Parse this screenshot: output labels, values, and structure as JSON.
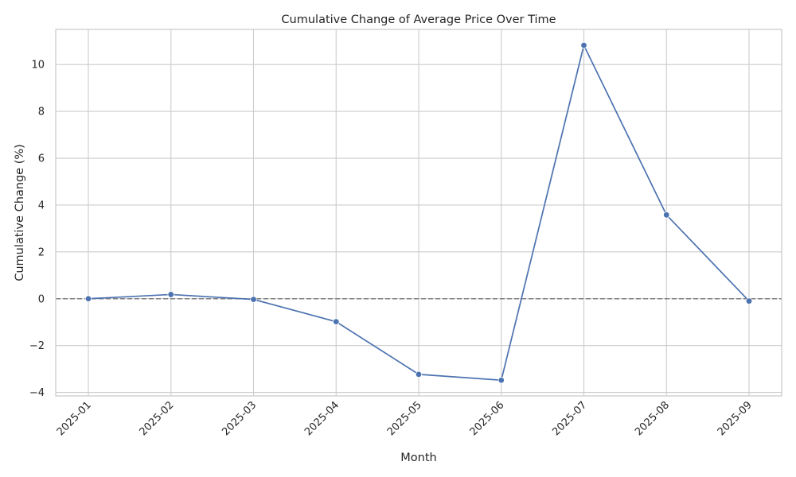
{
  "chart_data": {
    "type": "line",
    "title": "Cumulative Change of Average Price Over Time",
    "xlabel": "Month",
    "ylabel": "Cumulative Change (%)",
    "categories": [
      "2025-01",
      "2025-02",
      "2025-03",
      "2025-04",
      "2025-05",
      "2025-06",
      "2025-07",
      "2025-08",
      "2025-09"
    ],
    "x": [
      "2025-01-01",
      "2025-02-01",
      "2025-03-01",
      "2025-04-01",
      "2025-05-01",
      "2025-06-01",
      "2025-07-01",
      "2025-08-01",
      "2025-09-01"
    ],
    "series": [
      {
        "values": [
          0.0,
          0.18,
          -0.03,
          -0.98,
          -3.23,
          -3.48,
          10.82,
          3.58,
          -0.1
        ],
        "color": "#4c72b0",
        "marker": "circle"
      }
    ],
    "ylim": [
      -4.15,
      11.5
    ],
    "yticks": [
      -4,
      -2,
      0,
      2,
      4,
      6,
      8,
      10
    ],
    "ytick_labels": [
      "−4",
      "−2",
      "0",
      "2",
      "4",
      "6",
      "8",
      "10"
    ],
    "reference_line": {
      "y": 0,
      "style": "dashed",
      "color": "#808080"
    },
    "grid": true,
    "background": "#ffffff",
    "grid_color": "#cccccc"
  }
}
